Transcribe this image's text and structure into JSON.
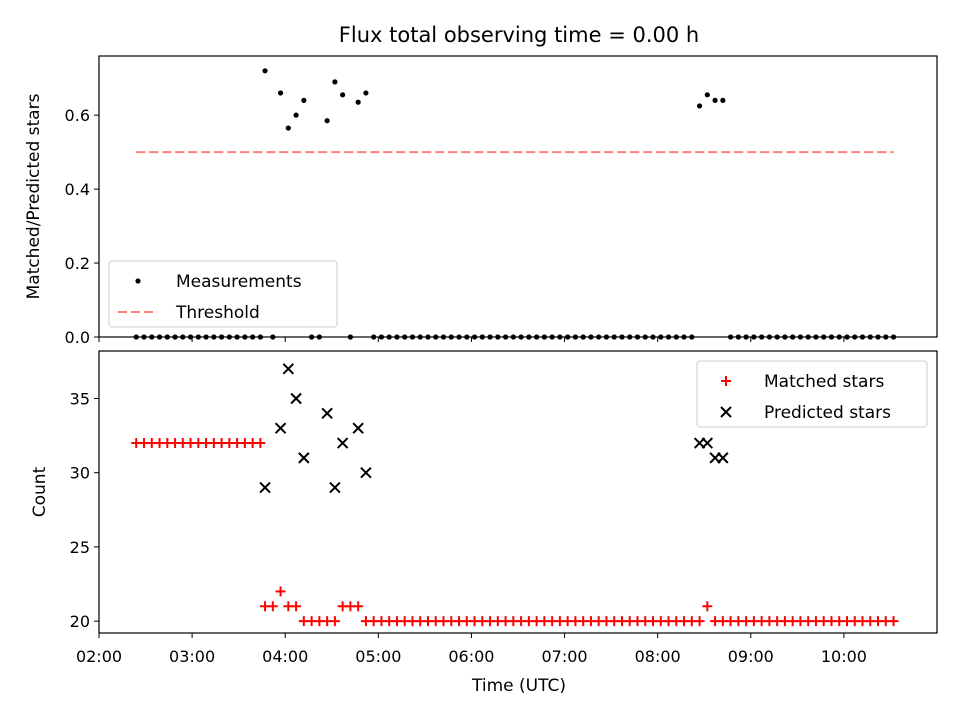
{
  "chart_data": {
    "title": "Flux total observing time = 0.00 h",
    "xlabel": "Time (UTC)",
    "xlim": [
      "02:00",
      "11:00"
    ],
    "x_ticks": [
      "02:00",
      "03:00",
      "04:00",
      "05:00",
      "06:00",
      "07:00",
      "08:00",
      "09:00",
      "10:00"
    ],
    "panels": [
      {
        "id": "ratio",
        "type": "scatter",
        "ylabel": "Matched/Predicted stars",
        "ylim": [
          0.0,
          0.76
        ],
        "y_ticks": [
          "0.0",
          "0.2",
          "0.4",
          "0.6"
        ],
        "legend": {
          "placement": "bottom-left",
          "entries": [
            "Measurements",
            "Threshold"
          ]
        },
        "series": [
          {
            "name": "Measurements",
            "kind": "dots",
            "color": "#000000",
            "points": [
              [
                "02:24",
                0
              ],
              [
                "02:29",
                0
              ],
              [
                "02:34",
                0
              ],
              [
                "02:39",
                0
              ],
              [
                "02:44",
                0
              ],
              [
                "02:49",
                0
              ],
              [
                "02:54",
                0
              ],
              [
                "02:59",
                0
              ],
              [
                "03:04",
                0
              ],
              [
                "03:09",
                0
              ],
              [
                "03:14",
                0
              ],
              [
                "03:19",
                0
              ],
              [
                "03:24",
                0
              ],
              [
                "03:29",
                0
              ],
              [
                "03:34",
                0
              ],
              [
                "03:39",
                0
              ],
              [
                "03:44",
                0
              ],
              [
                "03:47",
                0.72
              ],
              [
                "03:52",
                0
              ],
              [
                "03:57",
                0.66
              ],
              [
                "04:02",
                0.565
              ],
              [
                "04:07",
                0.6
              ],
              [
                "04:12",
                0.64
              ],
              [
                "04:17",
                0
              ],
              [
                "04:22",
                0
              ],
              [
                "04:27",
                0.585
              ],
              [
                "04:32",
                0.69
              ],
              [
                "04:37",
                0.655
              ],
              [
                "04:42",
                0
              ],
              [
                "04:47",
                0.635
              ],
              [
                "04:52",
                0.66
              ],
              [
                "04:57",
                0
              ],
              [
                "05:02",
                0
              ],
              [
                "05:07",
                0
              ],
              [
                "05:12",
                0
              ],
              [
                "05:17",
                0
              ],
              [
                "05:22",
                0
              ],
              [
                "05:27",
                0
              ],
              [
                "05:32",
                0
              ],
              [
                "05:37",
                0
              ],
              [
                "05:42",
                0
              ],
              [
                "05:47",
                0
              ],
              [
                "05:52",
                0
              ],
              [
                "05:57",
                0
              ],
              [
                "06:02",
                0
              ],
              [
                "06:07",
                0
              ],
              [
                "06:12",
                0
              ],
              [
                "06:17",
                0
              ],
              [
                "06:22",
                0
              ],
              [
                "06:27",
                0
              ],
              [
                "06:32",
                0
              ],
              [
                "06:37",
                0
              ],
              [
                "06:42",
                0
              ],
              [
                "06:47",
                0
              ],
              [
                "06:52",
                0
              ],
              [
                "06:57",
                0
              ],
              [
                "07:02",
                0
              ],
              [
                "07:07",
                0
              ],
              [
                "07:12",
                0
              ],
              [
                "07:17",
                0
              ],
              [
                "07:22",
                0
              ],
              [
                "07:27",
                0
              ],
              [
                "07:32",
                0
              ],
              [
                "07:37",
                0
              ],
              [
                "07:42",
                0
              ],
              [
                "07:47",
                0
              ],
              [
                "07:52",
                0
              ],
              [
                "07:57",
                0
              ],
              [
                "08:02",
                0
              ],
              [
                "08:07",
                0
              ],
              [
                "08:12",
                0
              ],
              [
                "08:17",
                0
              ],
              [
                "08:22",
                0
              ],
              [
                "08:27",
                0.625
              ],
              [
                "08:32",
                0.655
              ],
              [
                "08:37",
                0.64
              ],
              [
                "08:42",
                0.64
              ],
              [
                "08:47",
                0
              ],
              [
                "08:52",
                0
              ],
              [
                "08:57",
                0
              ],
              [
                "09:02",
                0
              ],
              [
                "09:07",
                0
              ],
              [
                "09:12",
                0
              ],
              [
                "09:17",
                0
              ],
              [
                "09:22",
                0
              ],
              [
                "09:27",
                0
              ],
              [
                "09:32",
                0
              ],
              [
                "09:37",
                0
              ],
              [
                "09:42",
                0
              ],
              [
                "09:47",
                0
              ],
              [
                "09:52",
                0
              ],
              [
                "09:57",
                0
              ],
              [
                "10:02",
                0
              ],
              [
                "10:07",
                0
              ],
              [
                "10:12",
                0
              ],
              [
                "10:17",
                0
              ],
              [
                "10:22",
                0
              ],
              [
                "10:27",
                0
              ],
              [
                "10:32",
                0
              ]
            ]
          },
          {
            "name": "Threshold",
            "kind": "dashed-line",
            "color": "#ff7f7f",
            "points": [
              [
                "02:24",
                0.5
              ],
              [
                "10:32",
                0.5
              ]
            ]
          }
        ]
      },
      {
        "id": "count",
        "type": "scatter",
        "ylabel": "Count",
        "ylim": [
          19.2,
          38.2
        ],
        "y_ticks": [
          "20",
          "25",
          "30",
          "35"
        ],
        "legend": {
          "placement": "top-right",
          "entries": [
            "Matched stars",
            "Predicted stars"
          ]
        },
        "series": [
          {
            "name": "Matched stars",
            "marker": "plus",
            "color": "#ff0000",
            "points": [
              [
                "02:24",
                32
              ],
              [
                "02:29",
                32
              ],
              [
                "02:34",
                32
              ],
              [
                "02:39",
                32
              ],
              [
                "02:44",
                32
              ],
              [
                "02:49",
                32
              ],
              [
                "02:54",
                32
              ],
              [
                "02:59",
                32
              ],
              [
                "03:04",
                32
              ],
              [
                "03:09",
                32
              ],
              [
                "03:14",
                32
              ],
              [
                "03:19",
                32
              ],
              [
                "03:24",
                32
              ],
              [
                "03:29",
                32
              ],
              [
                "03:34",
                32
              ],
              [
                "03:39",
                32
              ],
              [
                "03:44",
                32
              ],
              [
                "03:47",
                21
              ],
              [
                "03:52",
                21
              ],
              [
                "03:57",
                22
              ],
              [
                "04:02",
                21
              ],
              [
                "04:07",
                21
              ],
              [
                "04:12",
                20
              ],
              [
                "04:17",
                20
              ],
              [
                "04:22",
                20
              ],
              [
                "04:27",
                20
              ],
              [
                "04:32",
                20
              ],
              [
                "04:37",
                21
              ],
              [
                "04:42",
                21
              ],
              [
                "04:47",
                21
              ],
              [
                "04:52",
                20
              ],
              [
                "04:57",
                20
              ],
              [
                "05:02",
                20
              ],
              [
                "05:07",
                20
              ],
              [
                "05:12",
                20
              ],
              [
                "05:17",
                20
              ],
              [
                "05:22",
                20
              ],
              [
                "05:27",
                20
              ],
              [
                "05:32",
                20
              ],
              [
                "05:37",
                20
              ],
              [
                "05:42",
                20
              ],
              [
                "05:47",
                20
              ],
              [
                "05:52",
                20
              ],
              [
                "05:57",
                20
              ],
              [
                "06:02",
                20
              ],
              [
                "06:07",
                20
              ],
              [
                "06:12",
                20
              ],
              [
                "06:17",
                20
              ],
              [
                "06:22",
                20
              ],
              [
                "06:27",
                20
              ],
              [
                "06:32",
                20
              ],
              [
                "06:37",
                20
              ],
              [
                "06:42",
                20
              ],
              [
                "06:47",
                20
              ],
              [
                "06:52",
                20
              ],
              [
                "06:57",
                20
              ],
              [
                "07:02",
                20
              ],
              [
                "07:07",
                20
              ],
              [
                "07:12",
                20
              ],
              [
                "07:17",
                20
              ],
              [
                "07:22",
                20
              ],
              [
                "07:27",
                20
              ],
              [
                "07:32",
                20
              ],
              [
                "07:37",
                20
              ],
              [
                "07:42",
                20
              ],
              [
                "07:47",
                20
              ],
              [
                "07:52",
                20
              ],
              [
                "07:57",
                20
              ],
              [
                "08:02",
                20
              ],
              [
                "08:07",
                20
              ],
              [
                "08:12",
                20
              ],
              [
                "08:17",
                20
              ],
              [
                "08:22",
                20
              ],
              [
                "08:27",
                20
              ],
              [
                "08:32",
                21
              ],
              [
                "08:37",
                20
              ],
              [
                "08:42",
                20
              ],
              [
                "08:47",
                20
              ],
              [
                "08:52",
                20
              ],
              [
                "08:57",
                20
              ],
              [
                "09:02",
                20
              ],
              [
                "09:07",
                20
              ],
              [
                "09:12",
                20
              ],
              [
                "09:17",
                20
              ],
              [
                "09:22",
                20
              ],
              [
                "09:27",
                20
              ],
              [
                "09:32",
                20
              ],
              [
                "09:37",
                20
              ],
              [
                "09:42",
                20
              ],
              [
                "09:47",
                20
              ],
              [
                "09:52",
                20
              ],
              [
                "09:57",
                20
              ],
              [
                "10:02",
                20
              ],
              [
                "10:07",
                20
              ],
              [
                "10:12",
                20
              ],
              [
                "10:17",
                20
              ],
              [
                "10:22",
                20
              ],
              [
                "10:27",
                20
              ],
              [
                "10:32",
                20
              ]
            ]
          },
          {
            "name": "Predicted stars",
            "marker": "x",
            "color": "#000000",
            "points": [
              [
                "03:47",
                29
              ],
              [
                "03:57",
                33
              ],
              [
                "04:02",
                37
              ],
              [
                "04:07",
                35
              ],
              [
                "04:12",
                31
              ],
              [
                "04:27",
                34
              ],
              [
                "04:32",
                29
              ],
              [
                "04:37",
                32
              ],
              [
                "04:47",
                33
              ],
              [
                "04:52",
                30
              ],
              [
                "08:27",
                32
              ],
              [
                "08:32",
                32
              ],
              [
                "08:37",
                31
              ],
              [
                "08:42",
                31
              ]
            ]
          }
        ]
      }
    ]
  }
}
